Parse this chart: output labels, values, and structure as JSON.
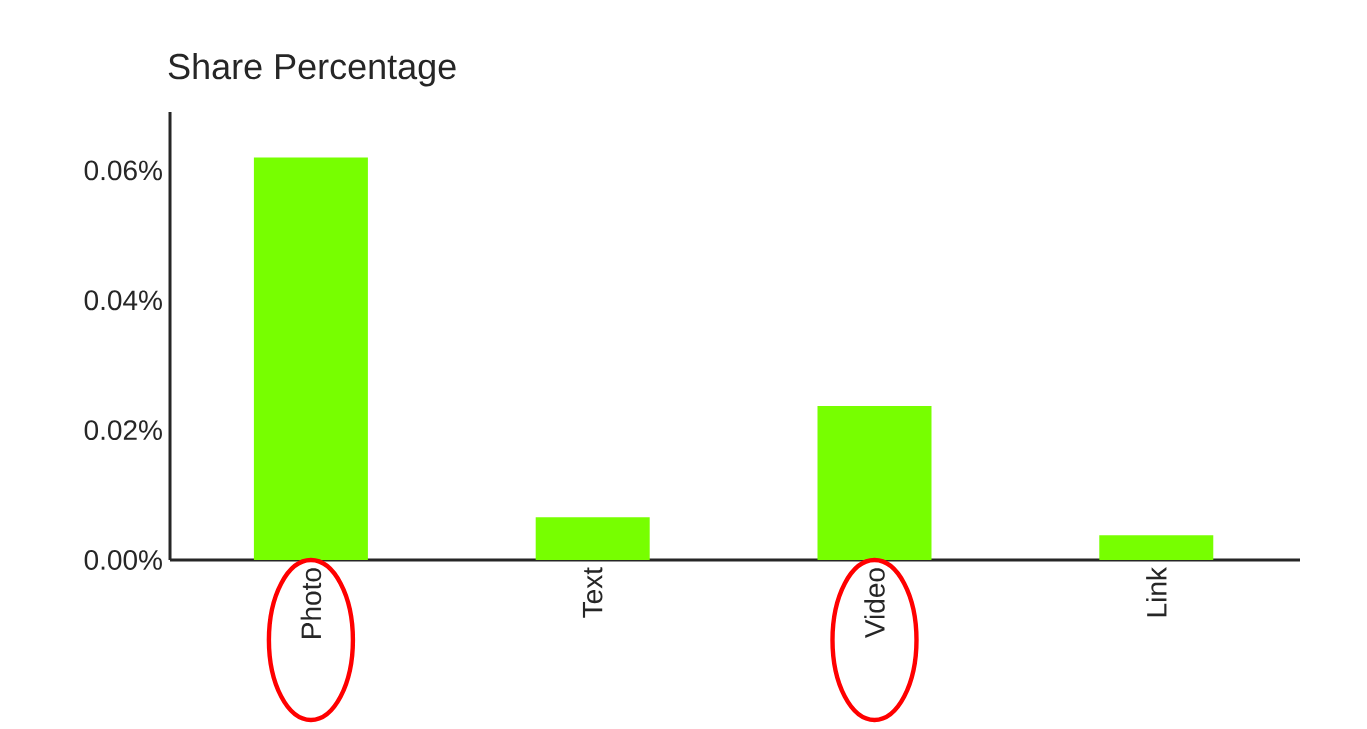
{
  "chart_data": {
    "type": "bar",
    "title": "Share Percentage",
    "categories": [
      "Photo",
      "Text",
      "Video",
      "Link"
    ],
    "values": [
      0.062,
      0.0066,
      0.0237,
      0.0038
    ],
    "color": "#77ff00",
    "ylim": [
      0,
      0.069
    ],
    "yticks": [
      {
        "value": 0,
        "label": "0.00%"
      },
      {
        "value": 0.02,
        "label": "0.02%"
      },
      {
        "value": 0.04,
        "label": "0.04%"
      },
      {
        "value": 0.06,
        "label": "0.06%"
      }
    ],
    "grid": false
  }
}
